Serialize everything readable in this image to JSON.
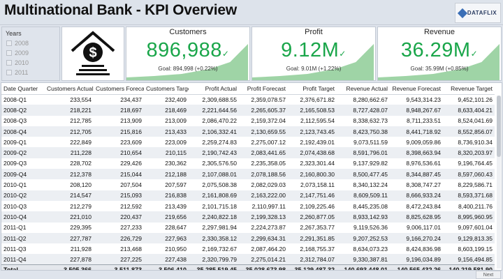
{
  "header": {
    "title": "Multinational Bank - KPI Overview",
    "logo_text": "DATAFLIX"
  },
  "slicer": {
    "title": "Years",
    "items": [
      {
        "label": "2008",
        "checked": false
      },
      {
        "label": "2009",
        "checked": false
      },
      {
        "label": "2010",
        "checked": false
      },
      {
        "label": "2011",
        "checked": false
      }
    ]
  },
  "bank_icon": "bank-dollar-icon",
  "kpis": [
    {
      "name": "Customers",
      "value": "896,988",
      "goal": "Goal: 894,998 (+0.22%)",
      "status_icon": "check-icon",
      "color": "#1aa64a",
      "trend_color": "#9fd4a6"
    },
    {
      "name": "Profit",
      "value": "9.12M",
      "goal": "Goal: 9.01M (+1.22%)",
      "status_icon": "check-icon",
      "color": "#1aa64a",
      "trend_color": "#9fd4a6"
    },
    {
      "name": "Revenue",
      "value": "36.29M",
      "goal": "Goal: 35.99M (+0.85%)",
      "status_icon": "check-icon",
      "color": "#1aa64a",
      "trend_color": "#9fd4a6"
    }
  ],
  "table": {
    "columns": [
      "Date Quarter",
      "Customers Actual",
      "Customers Forecast",
      "Customers Target",
      "Profit Actual",
      "Profit Forecast",
      "Profit Target",
      "Revenue Actual",
      "Revenue Forecast",
      "Revenue Target"
    ],
    "rows": [
      [
        "2008-Q1",
        "233,554",
        "234,437",
        "232,409",
        "2,309,688.55",
        "2,359,078.57",
        "2,376,671.82",
        "8,280,662.67",
        "9,543,314.23",
        "9,452,101.26"
      ],
      [
        "2008-Q2",
        "218,221",
        "218,697",
        "218,469",
        "2,221,644.56",
        "2,265,605.37",
        "2,165,508.53",
        "8,727,428.07",
        "8,948,267.67",
        "8,633,404.21"
      ],
      [
        "2008-Q3",
        "212,785",
        "213,909",
        "213,009",
        "2,086,470.22",
        "2,159,372.04",
        "2,112,595.54",
        "8,338,632.73",
        "8,711,233.51",
        "8,524,041.69"
      ],
      [
        "2008-Q4",
        "212,705",
        "215,816",
        "213,433",
        "2,106,332.41",
        "2,130,659.55",
        "2,123,743.45",
        "8,423,750.38",
        "8,441,718.92",
        "8,552,856.07"
      ],
      [
        "2009-Q1",
        "222,849",
        "223,609",
        "223,009",
        "2,259,274.83",
        "2,275,007.12",
        "2,192,439.01",
        "9,073,511.59",
        "9,009,059.86",
        "8,736,910.34"
      ],
      [
        "2009-Q2",
        "211,228",
        "210,654",
        "210,115",
        "2,190,742.43",
        "2,083,441.65",
        "2,074,438.68",
        "8,591,796.01",
        "8,398,663.94",
        "8,320,203.97"
      ],
      [
        "2009-Q3",
        "228,702",
        "229,426",
        "230,362",
        "2,305,576.50",
        "2,235,358.05",
        "2,323,301.44",
        "9,137,929.82",
        "8,976,536.61",
        "9,196,764.45"
      ],
      [
        "2009-Q4",
        "212,378",
        "215,044",
        "212,188",
        "2,107,088.01",
        "2,078,188.56",
        "2,160,800.30",
        "8,500,477.45",
        "8,344,887.45",
        "8,597,060.43"
      ],
      [
        "2010-Q1",
        "208,120",
        "207,504",
        "207,597",
        "2,075,508.38",
        "2,082,029.03",
        "2,073,158.11",
        "8,340,132.24",
        "8,308,747.27",
        "8,229,586.71"
      ],
      [
        "2010-Q2",
        "214,547",
        "215,093",
        "216,838",
        "2,161,808.69",
        "2,163,222.00",
        "2,147,751.46",
        "8,609,509.11",
        "8,666,933.24",
        "8,593,371.68"
      ],
      [
        "2010-Q3",
        "212,279",
        "212,592",
        "213,439",
        "2,101,715.18",
        "2,110,997.11",
        "2,109,225.46",
        "8,445,235.08",
        "8,472,243.84",
        "8,400,211.76"
      ],
      [
        "2010-Q4",
        "221,010",
        "220,437",
        "219,656",
        "2,240,822.18",
        "2,199,328.13",
        "2,260,877.05",
        "8,933,142.93",
        "8,825,628.95",
        "8,995,960.95"
      ],
      [
        "2011-Q1",
        "229,395",
        "227,233",
        "228,647",
        "2,297,981.94",
        "2,224,273.87",
        "2,267,353.77",
        "9,119,526.36",
        "9,006,117.01",
        "9,097,601.04"
      ],
      [
        "2011-Q2",
        "227,787",
        "226,729",
        "227,963",
        "2,330,358.12",
        "2,299,634.31",
        "2,291,351.85",
        "9,207,252.53",
        "9,166,270.24",
        "9,129,813.35"
      ],
      [
        "2011-Q3",
        "211,928",
        "213,468",
        "210,950",
        "2,169,732.67",
        "2,087,464.20",
        "2,168,755.37",
        "8,634,073.23",
        "8,424,836.98",
        "8,603,199.15"
      ],
      [
        "2011-Q4",
        "227,878",
        "227,225",
        "227,438",
        "2,320,799.79",
        "2,275,014.21",
        "2,312,784.07",
        "9,330,387.81",
        "9,196,034.89",
        "9,156,494.85"
      ]
    ],
    "total": [
      "Total",
      "3,505,366",
      "3,511,873",
      "3,506,410",
      "35,285,519.45",
      "35,028,673.98",
      "35,129,487.32",
      "140,693,448.01",
      "140,565,432.26",
      "140,219,581.90"
    ]
  },
  "footer": {
    "next_label": "Next"
  }
}
